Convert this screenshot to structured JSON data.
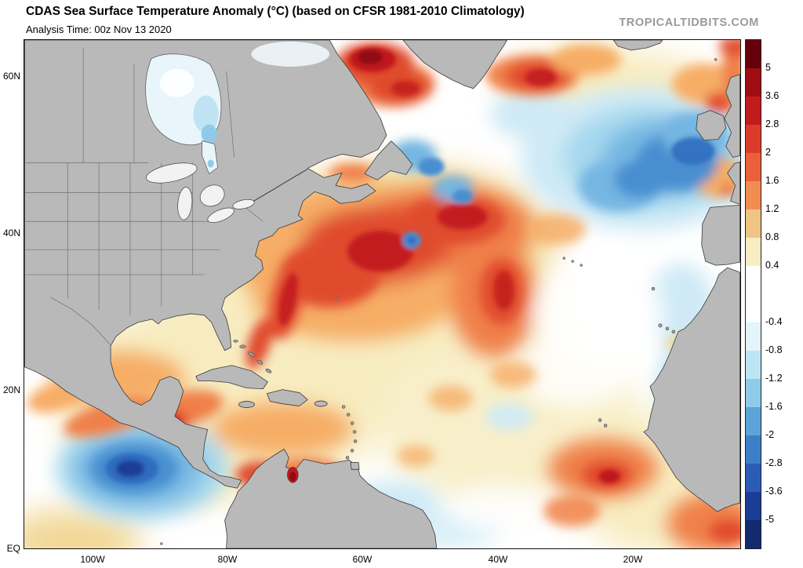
{
  "header": {
    "title": "CDAS Sea Surface Temperature Anomaly (°C) (based on CFSR 1981-2010 Climatology)",
    "analysis_time": "Analysis Time: 00z Nov 13 2020",
    "watermark": "TROPICALTIDBITS.COM"
  },
  "map": {
    "y_axis_labels": [
      "60N",
      "40N",
      "20N",
      "EQ"
    ],
    "x_axis_labels": [
      "100W",
      "80W",
      "60W",
      "40W",
      "20W"
    ]
  },
  "colorbar": {
    "units": "°C",
    "labels": [
      "5",
      "3.6",
      "2.8",
      "2",
      "1.6",
      "1.2",
      "0.8",
      "0.4",
      "-0.4",
      "-0.8",
      "-1.2",
      "-1.6",
      "-2",
      "-2.8",
      "-3.6",
      "-5"
    ],
    "segment_colors": [
      "#67000d",
      "#9e0d12",
      "#c21b1e",
      "#dc3b2b",
      "#ea603b",
      "#f28d52",
      "#eec584",
      "#f8ecc2",
      "#ffffff",
      "#e3f4fa",
      "#bde4f4",
      "#8fcbe9",
      "#5ba3d9",
      "#3d7fc7",
      "#2a5cb5",
      "#1b3d96",
      "#122a6e"
    ]
  },
  "chart_data": {
    "type": "heatmap",
    "title": "CDAS Sea Surface Temperature Anomaly (°C) (based on CFSR 1981-2010 Climatology)",
    "analysis_time": "00z Nov 13 2020",
    "variable": "sea surface temperature anomaly",
    "units": "°C",
    "map_extent": {
      "lat": [
        "EQ",
        "65N"
      ],
      "lon": [
        "110W",
        "4W"
      ]
    },
    "lat_ticks": [
      "60N",
      "40N",
      "20N",
      "EQ"
    ],
    "lon_ticks": [
      "100W",
      "80W",
      "60W",
      "40W",
      "20W"
    ],
    "colorbar_levels": [
      5,
      3.6,
      2.8,
      2,
      1.6,
      1.2,
      0.8,
      0.4,
      -0.4,
      -0.8,
      -1.2,
      -1.6,
      -2,
      -2.8,
      -3.6,
      -5
    ],
    "features": [
      {
        "region": "western North Atlantic / Gulf Stream (33-45N, 45-75W)",
        "anomaly_c": "+1.6 to +5"
      },
      {
        "region": "central North Atlantic (45-57N, 10-35W)",
        "anomaly_c": "-1.2 to -2.8"
      },
      {
        "region": "Davis Strait / Labrador Sea west of Greenland",
        "anomaly_c": "+2 to +5"
      },
      {
        "region": "patches south of Newfoundland",
        "anomaly_c": "-1.2 to -2"
      },
      {
        "region": "eastern tropical Pacific (0-12N, 85-105W)",
        "anomaly_c": "-1.6 to -3.6"
      },
      {
        "region": "subtropical Atlantic (10-30N)",
        "anomaly_c": "0 to +1.2"
      },
      {
        "region": "Gulf of Mexico and Caribbean",
        "anomaly_c": "+0.4 to +2"
      },
      {
        "region": "eastern Atlantic off Iberia / NW Africa",
        "anomaly_c": "-0.4 to -1.2"
      },
      {
        "region": "eastern tropical Atlantic near 15W, 8N and Gulf of Guinea",
        "anomaly_c": "+1.2 to +2.8"
      }
    ]
  }
}
